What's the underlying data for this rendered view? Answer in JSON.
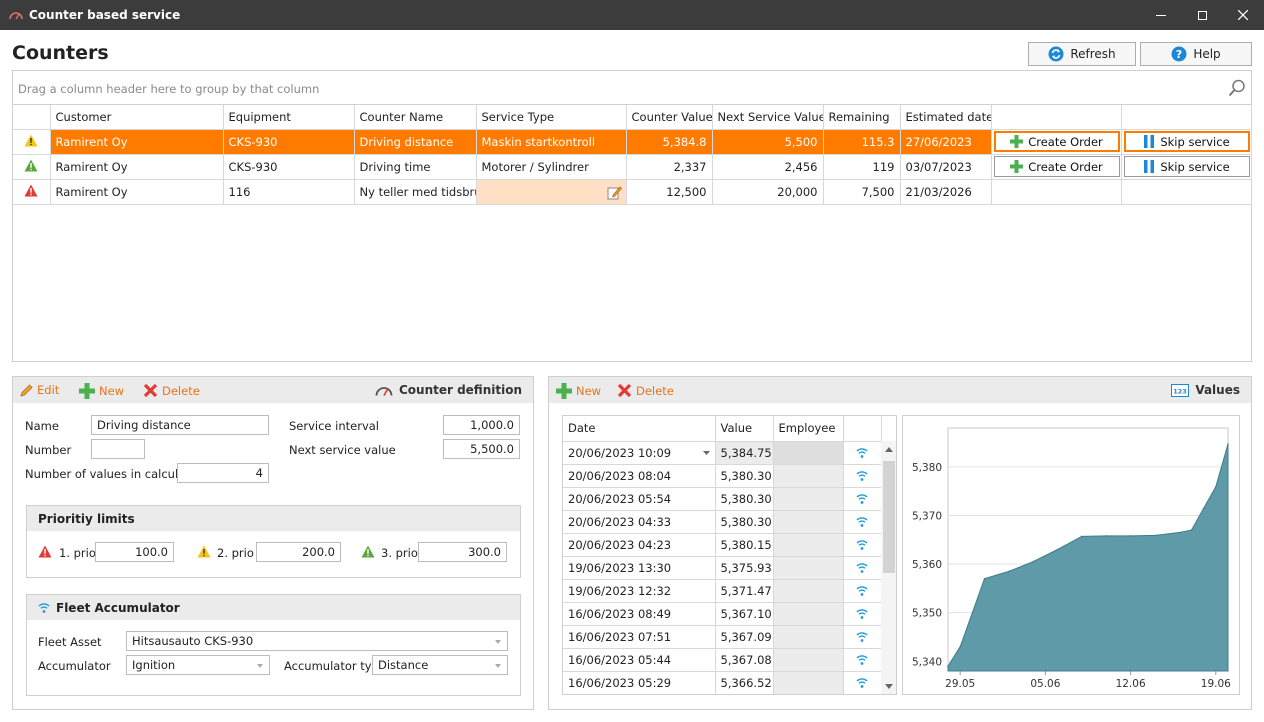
{
  "window": {
    "title": "Counter based service"
  },
  "page": {
    "title": "Counters",
    "refresh_label": "Refresh",
    "help_label": "Help"
  },
  "grid": {
    "group_hint": "Drag a column header here to group by that column",
    "columns": [
      "Customer",
      "Equipment",
      "Counter Name",
      "Service Type",
      "Counter Value",
      "Next Service Value",
      "Remaining",
      "Estimated date"
    ],
    "rows": [
      {
        "status": "warning-yellow",
        "customer": "Ramirent Oy",
        "equipment": "CKS-930",
        "counter_name": "Driving distance",
        "service_type": "Maskin startkontroll",
        "counter_value": "5,384.8",
        "next_service_value": "5,500",
        "remaining": "115.3",
        "estimated_date": "27/06/2023",
        "create_order": "Create Order",
        "skip_service": "Skip service"
      },
      {
        "status": "warning-green",
        "customer": "Ramirent Oy",
        "equipment": "CKS-930",
        "counter_name": "Driving time",
        "service_type": "Motorer / Sylindrer",
        "counter_value": "2,337",
        "next_service_value": "2,456",
        "remaining": "119",
        "estimated_date": "03/07/2023",
        "create_order": "Create Order",
        "skip_service": "Skip service"
      },
      {
        "status": "warning-red",
        "customer": "Ramirent Oy",
        "equipment": "116",
        "counter_name": "Ny teller med tidsbruk",
        "service_type": "",
        "counter_value": "12,500",
        "next_service_value": "20,000",
        "remaining": "7,500",
        "estimated_date": "21/03/2026"
      }
    ]
  },
  "definition_panel": {
    "toolbar": {
      "edit": "Edit",
      "new": "New",
      "delete": "Delete",
      "title": "Counter definition"
    },
    "name_label": "Name",
    "name_value": "Driving distance",
    "number_label": "Number",
    "number_value": "",
    "nvalues_label": "Number of values in calculation",
    "nvalues_value": "4",
    "service_interval_label": "Service interval",
    "service_interval_value": "1,000.0",
    "next_service_label": "Next service value",
    "next_service_value": "5,500.0",
    "priority": {
      "title": "Prioritiy limits",
      "p1_label": "1. prio",
      "p1_value": "100.0",
      "p2_label": "2. prio",
      "p2_value": "200.0",
      "p3_label": "3. prio",
      "p3_value": "300.0"
    },
    "fleet": {
      "title": "Fleet Accumulator",
      "asset_label": "Fleet Asset",
      "asset_value": "Hitsausauto CKS-930",
      "accumulator_label": "Accumulator",
      "accumulator_value": "Ignition",
      "acc_type_label": "Accumulator type",
      "acc_type_value": "Distance"
    }
  },
  "values_panel": {
    "toolbar": {
      "new": "New",
      "delete": "Delete",
      "title": "Values"
    },
    "columns": [
      "Date",
      "Value",
      "Employee"
    ],
    "rows": [
      {
        "date": "20/06/2023 10:09",
        "value": "5,384.75"
      },
      {
        "date": "20/06/2023 08:04",
        "value": "5,380.30"
      },
      {
        "date": "20/06/2023 05:54",
        "value": "5,380.30"
      },
      {
        "date": "20/06/2023 04:33",
        "value": "5,380.30"
      },
      {
        "date": "20/06/2023 04:23",
        "value": "5,380.15"
      },
      {
        "date": "19/06/2023 13:30",
        "value": "5,375.93"
      },
      {
        "date": "19/06/2023 12:32",
        "value": "5,371.47"
      },
      {
        "date": "16/06/2023 08:49",
        "value": "5,367.10"
      },
      {
        "date": "16/06/2023 07:51",
        "value": "5,367.09"
      },
      {
        "date": "16/06/2023 05:44",
        "value": "5,367.08"
      },
      {
        "date": "16/06/2023 05:29",
        "value": "5,366.52"
      }
    ]
  },
  "chart_data": {
    "type": "area",
    "xlabels": [
      "29.05",
      "05.06",
      "12.06",
      "19.06"
    ],
    "ylabels": [
      "5,340",
      "5,350",
      "5,360",
      "5,370",
      "5,380"
    ],
    "ylim": [
      5338,
      5388
    ],
    "x": [
      "28.05",
      "29.05",
      "31.05",
      "02.06",
      "04.06",
      "06.06",
      "08.06",
      "10.06",
      "12.06",
      "14.06",
      "16.06",
      "17.06",
      "18.06",
      "19.06",
      "20.06"
    ],
    "y": [
      5339,
      5343,
      5357,
      5358.5,
      5360.5,
      5363,
      5365.7,
      5365.8,
      5365.8,
      5365.9,
      5366.5,
      5367,
      5371.5,
      5375.9,
      5384.7
    ],
    "color": "#5e9aa8",
    "grid": true
  },
  "colors": {
    "accent": "#ff7b00",
    "toolbar_text": "#e8731a"
  }
}
